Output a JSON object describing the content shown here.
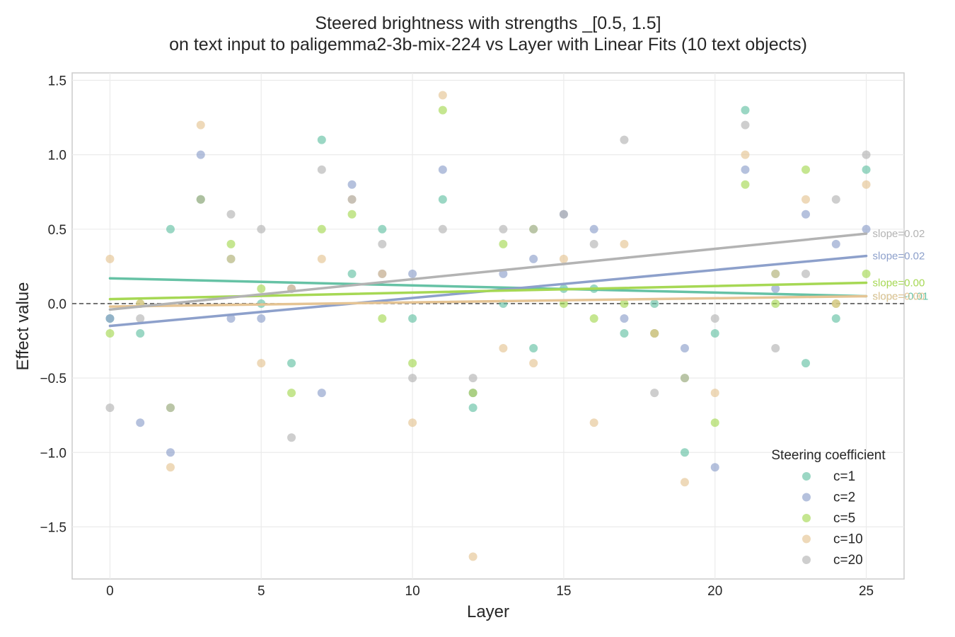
{
  "chart_data": {
    "type": "scatter",
    "title": "Steered brightness with strengths _[0.5, 1.5]",
    "subtitle": "on text input to paligemma2-3b-mix-224 vs Layer with Linear Fits (10 text objects)",
    "xlabel": "Layer",
    "ylabel": "Effect value",
    "xlim": [
      -1.25,
      26.25
    ],
    "ylim": [
      -1.85,
      1.55
    ],
    "x_ticks": [
      "0",
      "5",
      "10",
      "15",
      "20",
      "25"
    ],
    "y_ticks": [
      "1.5",
      "1.0",
      "0.5",
      "0.0",
      "−0.5",
      "−1.0",
      "−1.5"
    ],
    "grid": true,
    "zero_reference_line": 0.0,
    "legend": {
      "title": "Steering coefficient",
      "placement": "lower-right"
    },
    "series": [
      {
        "name": "c=1",
        "color": "#66c2a5",
        "points": [
          [
            0,
            -0.1
          ],
          [
            1,
            -0.2
          ],
          [
            2,
            0.5
          ],
          [
            3,
            0.7
          ],
          [
            4,
            0.3
          ],
          [
            5,
            0.0
          ],
          [
            6,
            -0.4
          ],
          [
            7,
            1.1
          ],
          [
            8,
            0.2
          ],
          [
            9,
            0.5
          ],
          [
            10,
            -0.1
          ],
          [
            11,
            0.7
          ],
          [
            12,
            -0.7
          ],
          [
            13,
            0.0
          ],
          [
            14,
            -0.3
          ],
          [
            15,
            0.1
          ],
          [
            16,
            0.1
          ],
          [
            17,
            -0.2
          ],
          [
            18,
            0.0
          ],
          [
            19,
            -1.0
          ],
          [
            20,
            -0.2
          ],
          [
            21,
            1.3
          ],
          [
            22,
            0.2
          ],
          [
            23,
            -0.4
          ],
          [
            24,
            -0.1
          ],
          [
            25,
            0.9
          ]
        ],
        "fit": {
          "y_at_0": 0.17,
          "y_at_25": 0.05
        },
        "slope_label": "slope=-0.01"
      },
      {
        "name": "c=2",
        "color": "#8da0cb",
        "points": [
          [
            0,
            -0.1
          ],
          [
            1,
            -0.8
          ],
          [
            2,
            -1.0
          ],
          [
            3,
            1.0
          ],
          [
            4,
            -0.1
          ],
          [
            5,
            -0.1
          ],
          [
            6,
            0.1
          ],
          [
            7,
            -0.6
          ],
          [
            8,
            0.8
          ],
          [
            9,
            0.2
          ],
          [
            10,
            0.2
          ],
          [
            11,
            0.9
          ],
          [
            12,
            -0.6
          ],
          [
            13,
            0.2
          ],
          [
            14,
            0.3
          ],
          [
            15,
            0.6
          ],
          [
            16,
            0.5
          ],
          [
            17,
            -0.1
          ],
          [
            18,
            -0.2
          ],
          [
            19,
            -0.3
          ],
          [
            20,
            -1.1
          ],
          [
            21,
            0.9
          ],
          [
            22,
            0.1
          ],
          [
            23,
            0.6
          ],
          [
            24,
            0.4
          ],
          [
            25,
            0.5
          ]
        ],
        "fit": {
          "y_at_0": -0.15,
          "y_at_25": 0.32
        },
        "slope_label": "slope=0.02"
      },
      {
        "name": "c=5",
        "color": "#a6d854",
        "points": [
          [
            0,
            -0.2
          ],
          [
            1,
            0.0
          ],
          [
            2,
            -0.7
          ],
          [
            3,
            0.7
          ],
          [
            4,
            0.4
          ],
          [
            5,
            0.1
          ],
          [
            6,
            -0.6
          ],
          [
            7,
            0.5
          ],
          [
            8,
            0.6
          ],
          [
            9,
            -0.1
          ],
          [
            10,
            -0.4
          ],
          [
            11,
            1.3
          ],
          [
            12,
            -0.6
          ],
          [
            13,
            0.4
          ],
          [
            14,
            0.5
          ],
          [
            15,
            0.0
          ],
          [
            16,
            -0.1
          ],
          [
            17,
            0.0
          ],
          [
            18,
            -0.2
          ],
          [
            19,
            -0.5
          ],
          [
            20,
            -0.8
          ],
          [
            21,
            0.8
          ],
          [
            22,
            0.0
          ],
          [
            23,
            0.9
          ],
          [
            24,
            0.0
          ],
          [
            25,
            0.2
          ]
        ],
        "fit": {
          "y_at_0": 0.03,
          "y_at_25": 0.14
        },
        "slope_label": "slope=0.00"
      },
      {
        "name": "c=10",
        "color": "#e5c494",
        "points": [
          [
            0,
            0.3
          ],
          [
            1,
            0.0
          ],
          [
            2,
            -1.1
          ],
          [
            3,
            1.2
          ],
          [
            4,
            0.3
          ],
          [
            5,
            -0.4
          ],
          [
            6,
            0.1
          ],
          [
            7,
            0.3
          ],
          [
            8,
            0.7
          ],
          [
            9,
            0.2
          ],
          [
            10,
            -0.8
          ],
          [
            11,
            1.4
          ],
          [
            12,
            -1.7
          ],
          [
            13,
            -0.3
          ],
          [
            14,
            -0.4
          ],
          [
            15,
            0.3
          ],
          [
            16,
            -0.8
          ],
          [
            17,
            0.4
          ],
          [
            18,
            -0.2
          ],
          [
            19,
            -1.2
          ],
          [
            20,
            -0.6
          ],
          [
            21,
            1.0
          ],
          [
            22,
            0.2
          ],
          [
            23,
            0.7
          ],
          [
            24,
            0.0
          ],
          [
            25,
            0.8
          ]
        ],
        "fit": {
          "y_at_0": -0.02,
          "y_at_25": 0.05
        },
        "slope_label": "slope=0.00"
      },
      {
        "name": "c=20",
        "color": "#b3b3b3",
        "points": [
          [
            0,
            -0.7
          ],
          [
            1,
            -0.1
          ],
          [
            2,
            -0.7
          ],
          [
            3,
            0.7
          ],
          [
            4,
            0.6
          ],
          [
            5,
            0.5
          ],
          [
            6,
            -0.9
          ],
          [
            7,
            0.9
          ],
          [
            8,
            0.7
          ],
          [
            9,
            0.4
          ],
          [
            10,
            -0.5
          ],
          [
            11,
            0.5
          ],
          [
            12,
            -0.5
          ],
          [
            13,
            0.5
          ],
          [
            14,
            0.5
          ],
          [
            15,
            0.6
          ],
          [
            16,
            0.4
          ],
          [
            17,
            1.1
          ],
          [
            18,
            -0.6
          ],
          [
            19,
            -0.5
          ],
          [
            20,
            -0.1
          ],
          [
            21,
            1.2
          ],
          [
            22,
            -0.3
          ],
          [
            23,
            0.2
          ],
          [
            24,
            0.7
          ],
          [
            25,
            1.0
          ]
        ],
        "fit": {
          "y_at_0": -0.04,
          "y_at_25": 0.47
        },
        "slope_label": "slope=0.02"
      }
    ]
  }
}
